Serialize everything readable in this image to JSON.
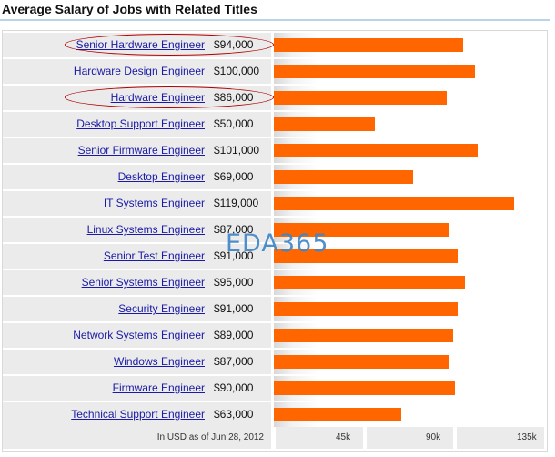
{
  "title": "Average Salary of Jobs with Related Titles",
  "footer_note": "In USD as of Jun 28, 2012",
  "watermark": "EDA365",
  "colors": {
    "bar": "#ff6600",
    "link": "#1a1aa6",
    "highlight_oval": "#b00000"
  },
  "chart_data": {
    "type": "bar",
    "orientation": "horizontal",
    "categories": [
      "Senior Hardware Engineer",
      "Hardware Design Engineer",
      "Hardware Engineer",
      "Desktop Support Engineer",
      "Senior Firmware Engineer",
      "Desktop Engineer",
      "IT Systems Engineer",
      "Linux Systems Engineer",
      "Senior Test Engineer",
      "Senior Systems Engineer",
      "Security Engineer",
      "Network Systems Engineer",
      "Windows Engineer",
      "Firmware Engineer",
      "Technical Support Engineer"
    ],
    "values": [
      94000,
      100000,
      86000,
      50000,
      101000,
      69000,
      119000,
      87000,
      91000,
      95000,
      91000,
      89000,
      87000,
      90000,
      63000
    ],
    "value_labels": [
      "$94,000",
      "$100,000",
      "$86,000",
      "$50,000",
      "$101,000",
      "$69,000",
      "$119,000",
      "$87,000",
      "$91,000",
      "$95,000",
      "$91,000",
      "$89,000",
      "$87,000",
      "$90,000",
      "$63,000"
    ],
    "highlighted": [
      "Senior Hardware Engineer",
      "Hardware Engineer"
    ],
    "xlim": [
      0,
      135000
    ],
    "x_ticks": [
      45000,
      90000,
      135000
    ],
    "x_tick_labels": [
      "45k",
      "90k",
      "135k"
    ],
    "grid": false
  }
}
